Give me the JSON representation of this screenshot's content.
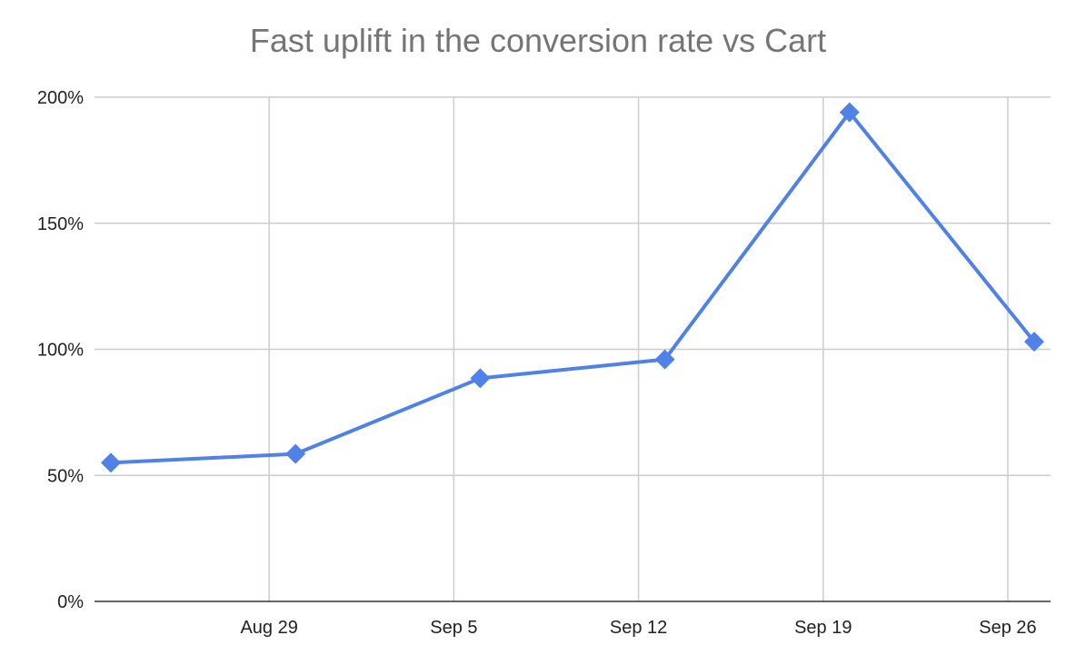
{
  "chart_data": {
    "type": "line",
    "title": "Fast uplift in the conversion rate vs Cart",
    "xlabel": "",
    "ylabel": "",
    "x": [
      "2021-08-23",
      "2021-08-30",
      "2021-09-06",
      "2021-09-13",
      "2021-09-20",
      "2021-09-27"
    ],
    "series": [
      {
        "values": [
          55,
          58.5,
          88.5,
          96,
          194,
          103
        ]
      }
    ],
    "x_ticks": [
      "Aug 29",
      "Sep 5",
      "Sep 12",
      "Sep 19",
      "Sep 26"
    ],
    "x_tick_dates": [
      "2021-08-29",
      "2021-09-05",
      "2021-09-12",
      "2021-09-19",
      "2021-09-26"
    ],
    "x_range": [
      "2021-08-23",
      "2021-09-27"
    ],
    "y_ticks": [
      "0%",
      "50%",
      "100%",
      "150%",
      "200%"
    ],
    "y_tick_values": [
      0,
      50,
      100,
      150,
      200
    ],
    "ylim": [
      0,
      200
    ],
    "grid": true,
    "legend": "none",
    "colors": {
      "line": "#4f81e6",
      "grid": "#cccccc",
      "axis": "#333333"
    },
    "marker": "diamond"
  }
}
